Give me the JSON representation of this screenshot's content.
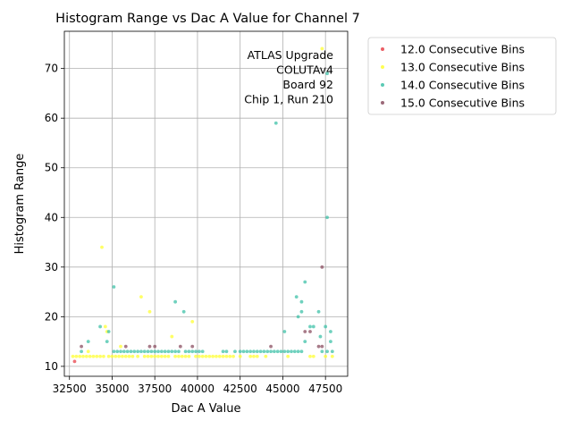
{
  "chart_data": {
    "type": "scatter",
    "title": "Histogram Range vs Dac A Value for Channel 7",
    "xlabel": "Dac A Value",
    "ylabel": "Histogram Range",
    "xlim": [
      32200,
      48800
    ],
    "ylim": [
      8,
      77.5
    ],
    "xticks": [
      32500,
      35000,
      37500,
      40000,
      42500,
      45000,
      47500
    ],
    "yticks": [
      10,
      20,
      30,
      40,
      50,
      60,
      70
    ],
    "grid": true,
    "legend_position": "outside-right",
    "annotation": [
      "ATLAS Upgrade",
      "COLUTAv4",
      "Board 92",
      "Chip 1, Run 210"
    ],
    "series": [
      {
        "name": "12.0 Consecutive Bins",
        "color": "#e8424a",
        "points": [
          [
            32800,
            11
          ]
        ]
      },
      {
        "name": "13.0 Consecutive Bins",
        "color": "#ffff33",
        "points": [
          [
            32700,
            12
          ],
          [
            32900,
            12
          ],
          [
            33100,
            12
          ],
          [
            33300,
            12
          ],
          [
            33500,
            12
          ],
          [
            33600,
            13
          ],
          [
            33700,
            12
          ],
          [
            33900,
            12
          ],
          [
            34100,
            12
          ],
          [
            34300,
            12
          ],
          [
            34400,
            34
          ],
          [
            34500,
            12
          ],
          [
            34600,
            18
          ],
          [
            34700,
            17
          ],
          [
            34800,
            12
          ],
          [
            35000,
            12
          ],
          [
            35200,
            12
          ],
          [
            35400,
            12
          ],
          [
            35500,
            14
          ],
          [
            35600,
            12
          ],
          [
            35800,
            12
          ],
          [
            36000,
            12
          ],
          [
            36200,
            12
          ],
          [
            36500,
            12
          ],
          [
            36700,
            24
          ],
          [
            36900,
            12
          ],
          [
            37100,
            12
          ],
          [
            37200,
            21
          ],
          [
            37300,
            12
          ],
          [
            37500,
            12
          ],
          [
            37700,
            12
          ],
          [
            37900,
            12
          ],
          [
            38100,
            12
          ],
          [
            38300,
            12
          ],
          [
            38500,
            16
          ],
          [
            38700,
            12
          ],
          [
            38900,
            12
          ],
          [
            39100,
            12
          ],
          [
            39300,
            12
          ],
          [
            39500,
            12
          ],
          [
            39700,
            19
          ],
          [
            39900,
            12
          ],
          [
            40100,
            12
          ],
          [
            40300,
            12
          ],
          [
            40500,
            12
          ],
          [
            40700,
            12
          ],
          [
            40900,
            12
          ],
          [
            41100,
            12
          ],
          [
            41300,
            12
          ],
          [
            41500,
            12
          ],
          [
            41700,
            12
          ],
          [
            41900,
            12
          ],
          [
            42100,
            12
          ],
          [
            42500,
            12
          ],
          [
            43100,
            12
          ],
          [
            43300,
            12
          ],
          [
            43500,
            12
          ],
          [
            44000,
            12
          ],
          [
            45300,
            12
          ],
          [
            46600,
            12
          ],
          [
            46800,
            12
          ],
          [
            47300,
            74
          ],
          [
            47500,
            12
          ],
          [
            47900,
            12
          ]
        ]
      },
      {
        "name": "14.0 Consecutive Bins",
        "color": "#3fc1a8",
        "points": [
          [
            33200,
            13
          ],
          [
            33600,
            15
          ],
          [
            34300,
            18
          ],
          [
            34700,
            15
          ],
          [
            34800,
            17
          ],
          [
            35100,
            26
          ],
          [
            35100,
            13
          ],
          [
            35300,
            13
          ],
          [
            35500,
            13
          ],
          [
            35700,
            13
          ],
          [
            35900,
            13
          ],
          [
            36100,
            13
          ],
          [
            36300,
            13
          ],
          [
            36500,
            13
          ],
          [
            36700,
            13
          ],
          [
            36900,
            13
          ],
          [
            37100,
            13
          ],
          [
            37300,
            13
          ],
          [
            37500,
            13
          ],
          [
            37700,
            13
          ],
          [
            37900,
            13
          ],
          [
            38100,
            13
          ],
          [
            38300,
            13
          ],
          [
            38500,
            13
          ],
          [
            38700,
            23
          ],
          [
            38700,
            13
          ],
          [
            38900,
            13
          ],
          [
            39200,
            21
          ],
          [
            39300,
            13
          ],
          [
            39500,
            13
          ],
          [
            39700,
            13
          ],
          [
            39900,
            13
          ],
          [
            40100,
            13
          ],
          [
            40300,
            13
          ],
          [
            41500,
            13
          ],
          [
            41700,
            13
          ],
          [
            42200,
            13
          ],
          [
            42500,
            13
          ],
          [
            42700,
            13
          ],
          [
            42900,
            13
          ],
          [
            43100,
            13
          ],
          [
            43300,
            13
          ],
          [
            43500,
            13
          ],
          [
            43700,
            13
          ],
          [
            43900,
            13
          ],
          [
            44100,
            13
          ],
          [
            44300,
            13
          ],
          [
            44500,
            13
          ],
          [
            44600,
            59
          ],
          [
            44700,
            13
          ],
          [
            44900,
            13
          ],
          [
            45100,
            17
          ],
          [
            45100,
            13
          ],
          [
            45300,
            13
          ],
          [
            45500,
            13
          ],
          [
            45700,
            13
          ],
          [
            45800,
            24
          ],
          [
            45900,
            20
          ],
          [
            45900,
            13
          ],
          [
            46100,
            23
          ],
          [
            46100,
            21
          ],
          [
            46100,
            13
          ],
          [
            46300,
            27
          ],
          [
            46300,
            15
          ],
          [
            46600,
            18
          ],
          [
            46800,
            18
          ],
          [
            47100,
            21
          ],
          [
            47200,
            16
          ],
          [
            47300,
            13
          ],
          [
            47500,
            18
          ],
          [
            47600,
            69
          ],
          [
            47600,
            40
          ],
          [
            47600,
            13
          ],
          [
            47800,
            17
          ],
          [
            47800,
            15
          ],
          [
            47900,
            13
          ]
        ]
      },
      {
        "name": "15.0 Consecutive Bins",
        "color": "#8b4f62",
        "points": [
          [
            33200,
            14
          ],
          [
            35800,
            14
          ],
          [
            37200,
            14
          ],
          [
            37500,
            14
          ],
          [
            39000,
            14
          ],
          [
            39700,
            14
          ],
          [
            44300,
            14
          ],
          [
            46300,
            17
          ],
          [
            47100,
            14
          ],
          [
            47300,
            14
          ],
          [
            47300,
            30
          ],
          [
            46600,
            17
          ]
        ]
      }
    ]
  }
}
